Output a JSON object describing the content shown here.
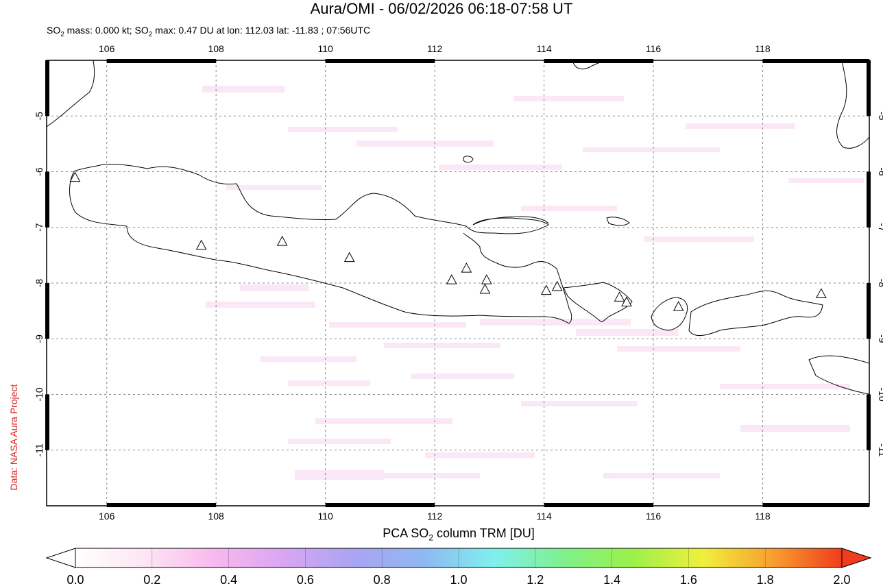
{
  "title": "Aura/OMI - 06/02/2026 06:18-07:58 UT",
  "subtitle": {
    "prefix": "SO",
    "sub": "2",
    "mid": " mass: 0.000 kt; SO",
    "sub2": "2",
    "suffix": " max: 0.47 DU at lon: 112.03 lat: -11.83 ; 07:56UTC"
  },
  "credit": "Data: NASA Aura Project",
  "colorbar": {
    "label_prefix": "PCA SO",
    "label_sub": "2",
    "label_suffix": " column TRM [DU]",
    "ticks": [
      "0.0",
      "0.2",
      "0.4",
      "0.6",
      "0.8",
      "1.0",
      "1.2",
      "1.4",
      "1.6",
      "1.8",
      "2.0"
    ],
    "colors": [
      "#ffffff",
      "#fce6f2",
      "#f8b8ee",
      "#d9a6f2",
      "#a9a4f2",
      "#8fb8f2",
      "#7ff0ee",
      "#7ff08c",
      "#9cf04a",
      "#f0f03c",
      "#f8a030",
      "#f03c1c"
    ]
  },
  "map": {
    "lon_range": [
      104.9,
      119.95
    ],
    "lat_range": [
      -4.0,
      -12.0
    ],
    "lon_ticks": [
      "106",
      "108",
      "110",
      "112",
      "114",
      "116",
      "118"
    ],
    "lat_ticks": [
      "-5",
      "-6",
      "-7",
      "-8",
      "-9",
      "-10",
      "-11"
    ],
    "volcanoes": [
      {
        "lon": 105.42,
        "lat": -6.1
      },
      {
        "lon": 107.73,
        "lat": -7.32
      },
      {
        "lon": 109.21,
        "lat": -7.25
      },
      {
        "lon": 110.44,
        "lat": -7.54
      },
      {
        "lon": 112.31,
        "lat": -7.94
      },
      {
        "lon": 112.58,
        "lat": -7.73
      },
      {
        "lon": 112.95,
        "lat": -7.94
      },
      {
        "lon": 112.92,
        "lat": -8.11
      },
      {
        "lon": 114.04,
        "lat": -8.13
      },
      {
        "lon": 114.24,
        "lat": -8.06
      },
      {
        "lon": 115.38,
        "lat": -8.25
      },
      {
        "lon": 115.51,
        "lat": -8.34
      },
      {
        "lon": 116.46,
        "lat": -8.42
      },
      {
        "lon": 119.07,
        "lat": -8.19
      }
    ]
  }
}
